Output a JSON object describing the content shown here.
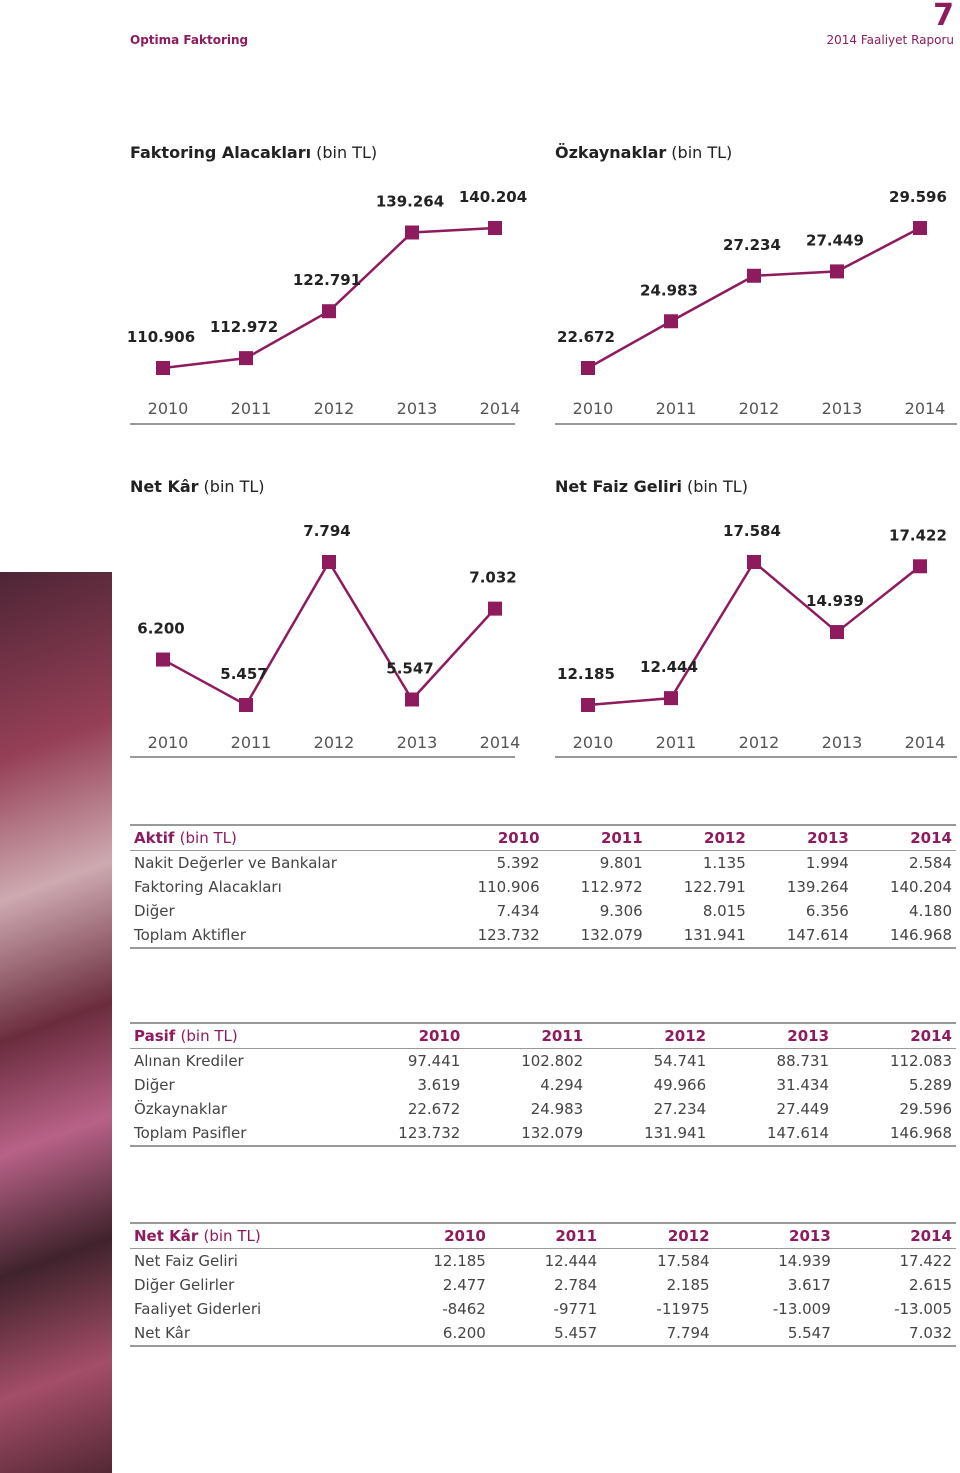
{
  "header": {
    "company": "Optima Faktoring",
    "page_number": "7",
    "report": "2014 Faaliyet Raporu"
  },
  "chart_data": [
    {
      "type": "line",
      "title": "Faktoring Alacakları",
      "unit": "(bin TL)",
      "categories": [
        "2010",
        "2011",
        "2012",
        "2013",
        "2014"
      ],
      "values": [
        110906,
        112972,
        122791,
        139264,
        140204
      ],
      "value_labels": [
        "110.906",
        "112.972",
        "122.791",
        "139.264",
        "140.204"
      ],
      "color": "#8e1b5e"
    },
    {
      "type": "line",
      "title": "Özkaynaklar",
      "unit": "(bin TL)",
      "categories": [
        "2010",
        "2011",
        "2012",
        "2013",
        "2014"
      ],
      "values": [
        22672,
        24983,
        27234,
        27449,
        29596
      ],
      "value_labels": [
        "22.672",
        "24.983",
        "27.234",
        "27.449",
        "29.596"
      ],
      "color": "#8e1b5e"
    },
    {
      "type": "line",
      "title": "Net Kâr",
      "unit": "(bin TL)",
      "categories": [
        "2010",
        "2011",
        "2012",
        "2013",
        "2014"
      ],
      "values": [
        6200,
        5457,
        7794,
        5547,
        7032
      ],
      "value_labels": [
        "6.200",
        "5.457",
        "7.794",
        "5.547",
        "7.032"
      ],
      "color": "#8e1b5e"
    },
    {
      "type": "line",
      "title": "Net Faiz Geliri",
      "unit": "(bin TL)",
      "categories": [
        "2010",
        "2011",
        "2012",
        "2013",
        "2014"
      ],
      "values": [
        12185,
        12444,
        17584,
        14939,
        17422
      ],
      "value_labels": [
        "12.185",
        "12.444",
        "17.584",
        "14.939",
        "17.422"
      ],
      "color": "#8e1b5e"
    }
  ],
  "tables": [
    {
      "title": "Aktif",
      "unit": "(bin TL)",
      "columns": [
        "2010",
        "2011",
        "2012",
        "2013",
        "2014"
      ],
      "rows": [
        [
          "Nakit Değerler ve Bankalar",
          "5.392",
          "9.801",
          "1.135",
          "1.994",
          "2.584"
        ],
        [
          "Faktoring Alacakları",
          "110.906",
          "112.972",
          "122.791",
          "139.264",
          "140.204"
        ],
        [
          "Diğer",
          "7.434",
          "9.306",
          "8.015",
          "6.356",
          "4.180"
        ],
        [
          "Toplam Aktifler",
          "123.732",
          "132.079",
          "131.941",
          "147.614",
          "146.968"
        ]
      ]
    },
    {
      "title": "Pasif",
      "unit": "(bin TL)",
      "columns": [
        "2010",
        "2011",
        "2012",
        "2013",
        "2014"
      ],
      "rows": [
        [
          "Alınan Krediler",
          "97.441",
          "102.802",
          "54.741",
          "88.731",
          "112.083"
        ],
        [
          "Diğer",
          "3.619",
          "4.294",
          "49.966",
          "31.434",
          "5.289"
        ],
        [
          "Özkaynaklar",
          "22.672",
          "24.983",
          "27.234",
          "27.449",
          "29.596"
        ],
        [
          "Toplam Pasifler",
          "123.732",
          "132.079",
          "131.941",
          "147.614",
          "146.968"
        ]
      ]
    },
    {
      "title": "Net Kâr",
      "unit": "(bin TL)",
      "columns": [
        "2010",
        "2011",
        "2012",
        "2013",
        "2014"
      ],
      "rows": [
        [
          "Net Faiz Geliri",
          "12.185",
          "12.444",
          "17.584",
          "14.939",
          "17.422"
        ],
        [
          "Diğer Gelirler",
          "2.477",
          "2.784",
          "2.185",
          "3.617",
          "2.615"
        ],
        [
          "Faaliyet Giderleri",
          "-8462",
          "-9771",
          "-11975",
          "-13.009",
          "-13.005"
        ],
        [
          "Net Kâr",
          "6.200",
          "5.457",
          "7.794",
          "5.547",
          "7.032"
        ]
      ]
    }
  ]
}
